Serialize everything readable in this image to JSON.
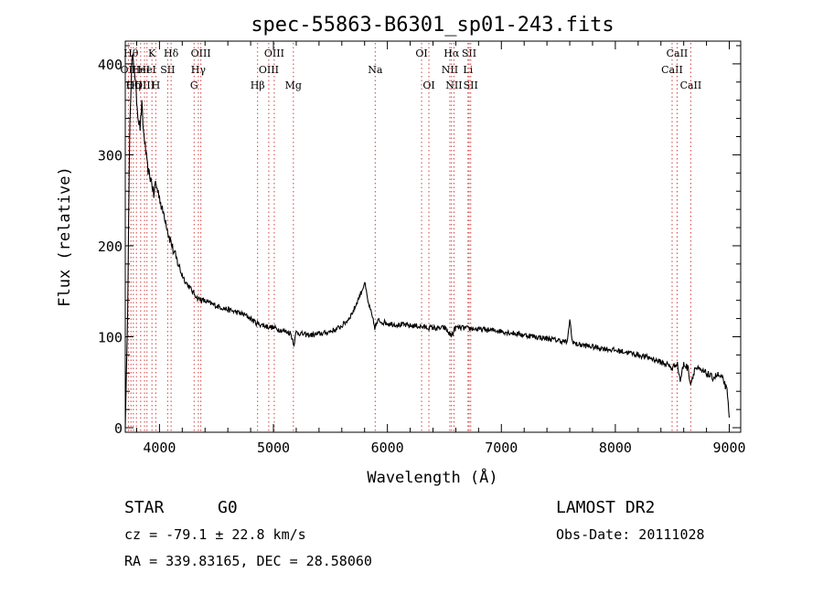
{
  "chart_data": {
    "type": "line",
    "title": "spec-55863-B6301_sp01-243.fits",
    "xlabel": "Wavelength (Å)",
    "ylabel": "Flux (relative)",
    "xlim": [
      3700,
      9100
    ],
    "ylim": [
      -5,
      425
    ],
    "xticks": [
      4000,
      5000,
      6000,
      7000,
      8000,
      9000
    ],
    "yticks": [
      0,
      100,
      200,
      300,
      400
    ],
    "grid": false,
    "series": [
      {
        "color": "#000000",
        "x": [
          3700,
          3720,
          3740,
          3760,
          3780,
          3800,
          3815,
          3830,
          3845,
          3860,
          3875,
          3890,
          3905,
          3920,
          3935,
          3950,
          3965,
          3980,
          4000,
          4020,
          4040,
          4060,
          4080,
          4100,
          4120,
          4150,
          4180,
          4200,
          4230,
          4260,
          4300,
          4340,
          4380,
          4420,
          4460,
          4500,
          4550,
          4600,
          4650,
          4700,
          4750,
          4800,
          4850,
          4900,
          4950,
          5000,
          5050,
          5100,
          5150,
          5180,
          5200,
          5250,
          5300,
          5350,
          5400,
          5450,
          5500,
          5550,
          5600,
          5650,
          5700,
          5740,
          5780,
          5800,
          5830,
          5860,
          5890,
          5920,
          5960,
          6000,
          6050,
          6100,
          6150,
          6200,
          6250,
          6300,
          6350,
          6400,
          6450,
          6500,
          6560,
          6600,
          6650,
          6700,
          6750,
          6800,
          6850,
          6900,
          6950,
          7000,
          7100,
          7200,
          7300,
          7400,
          7500,
          7580,
          7600,
          7620,
          7650,
          7700,
          7800,
          7900,
          8000,
          8100,
          8200,
          8300,
          8400,
          8450,
          8500,
          8540,
          8570,
          8600,
          8640,
          8660,
          8700,
          8750,
          8800,
          8850,
          8900,
          8950,
          8980,
          9000
        ],
        "y": [
          0,
          120,
          340,
          408,
          395,
          360,
          340,
          330,
          355,
          325,
          310,
          290,
          280,
          275,
          268,
          255,
          270,
          262,
          255,
          240,
          235,
          225,
          212,
          205,
          195,
          185,
          175,
          168,
          160,
          155,
          148,
          142,
          140,
          138,
          136,
          134,
          132,
          130,
          128,
          126,
          124,
          120,
          115,
          113,
          111,
          110,
          108,
          106,
          104,
          92,
          105,
          103,
          102,
          102,
          103,
          104,
          106,
          108,
          112,
          118,
          128,
          140,
          152,
          160,
          138,
          125,
          110,
          118,
          116,
          115,
          114,
          113,
          113,
          112,
          112,
          111,
          110,
          110,
          109,
          110,
          101,
          110,
          110,
          109,
          109,
          108,
          108,
          107,
          107,
          106,
          104,
          102,
          100,
          98,
          96,
          94,
          120,
          96,
          92,
          91,
          89,
          87,
          85,
          83,
          80,
          77,
          72,
          70,
          65,
          72,
          52,
          70,
          65,
          48,
          66,
          62,
          60,
          55,
          58,
          52,
          40,
          10
        ]
      }
    ],
    "line_markers": [
      {
        "x": 3727,
        "label": "OII",
        "row": 1
      },
      {
        "x": 3750,
        "label": "Hθ",
        "row": 0
      },
      {
        "x": 3771,
        "label": "Hη",
        "row": 2
      },
      {
        "x": 3798,
        "label": "OIII",
        "row": 2
      },
      {
        "x": 3835,
        "label": "HeI",
        "row": 1
      },
      {
        "x": 3869,
        "label": "OIII",
        "row": 2
      },
      {
        "x": 3890,
        "label": "HeI",
        "row": 1
      },
      {
        "x": 3934,
        "label": "K",
        "row": 0
      },
      {
        "x": 3968,
        "label": "H",
        "row": 2
      },
      {
        "x": 4072,
        "label": "SII",
        "row": 1
      },
      {
        "x": 4102,
        "label": "Hδ",
        "row": 0
      },
      {
        "x": 4304,
        "label": "G",
        "row": 2
      },
      {
        "x": 4341,
        "label": "Hγ",
        "row": 1
      },
      {
        "x": 4363,
        "label": "OIII",
        "row": 0
      },
      {
        "x": 4861,
        "label": "Hβ",
        "row": 2
      },
      {
        "x": 4959,
        "label": "OIII",
        "row": 1
      },
      {
        "x": 5007,
        "label": "OIII",
        "row": 0
      },
      {
        "x": 5175,
        "label": "Mg",
        "row": 2
      },
      {
        "x": 5893,
        "label": "Na",
        "row": 1
      },
      {
        "x": 6300,
        "label": "OI",
        "row": 0
      },
      {
        "x": 6364,
        "label": "OI",
        "row": 2
      },
      {
        "x": 6548,
        "label": "NII",
        "row": 1
      },
      {
        "x": 6563,
        "label": "Hα",
        "row": 0
      },
      {
        "x": 6584,
        "label": "NII",
        "row": 2
      },
      {
        "x": 6707,
        "label": "Li",
        "row": 1
      },
      {
        "x": 6717,
        "label": "SII",
        "row": 0
      },
      {
        "x": 6731,
        "label": "SII",
        "row": 2
      },
      {
        "x": 8498,
        "label": "CaII",
        "row": 1
      },
      {
        "x": 8542,
        "label": "CaII",
        "row": 0
      },
      {
        "x": 8662,
        "label": "CaII",
        "row": 2
      }
    ]
  },
  "info": {
    "object_class": "STAR",
    "subclass": "G0",
    "survey": "LAMOST DR2",
    "redshift": "cz = -79.1 ± 22.8 km/s",
    "obs_date": "Obs-Date: 20111028",
    "coords": "RA = 339.83165, DEC =  28.58060"
  }
}
